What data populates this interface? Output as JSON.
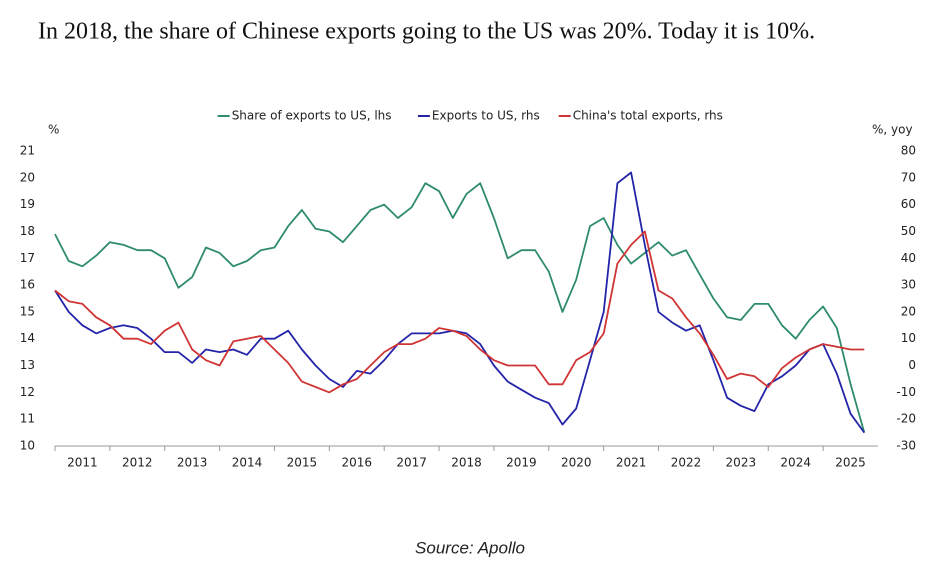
{
  "chart_data": {
    "type": "line",
    "title": "In 2018, the share of Chinese exports going to the US was 20%. Today it is 10%.",
    "source": "Source: Apollo",
    "ylabel": "%",
    "y2label": "%, yoy",
    "x": [
      2011,
      2011.25,
      2011.5,
      2011.75,
      2012,
      2012.25,
      2012.5,
      2012.75,
      2013,
      2013.25,
      2013.5,
      2013.75,
      2014,
      2014.25,
      2014.5,
      2014.75,
      2015,
      2015.25,
      2015.5,
      2015.75,
      2016,
      2016.25,
      2016.5,
      2016.75,
      2017,
      2017.25,
      2017.5,
      2017.75,
      2018,
      2018.25,
      2018.5,
      2018.75,
      2019,
      2019.25,
      2019.5,
      2019.75,
      2020,
      2020.25,
      2020.5,
      2020.75,
      2021,
      2021.25,
      2021.5,
      2021.75,
      2022,
      2022.25,
      2022.5,
      2022.75,
      2023,
      2023.25,
      2023.5,
      2023.75,
      2024,
      2024.25,
      2024.5,
      2024.75,
      2025,
      2025.25,
      2025.5,
      2025.75
    ],
    "series": [
      {
        "name": "Share of exports to US, lhs",
        "color": "#2e8b6e",
        "axis": "y",
        "values": [
          17.9,
          16.9,
          16.7,
          17.1,
          17.6,
          17.5,
          17.3,
          17.3,
          17.0,
          15.9,
          16.3,
          17.4,
          17.2,
          16.7,
          16.9,
          17.3,
          17.4,
          18.2,
          18.8,
          18.1,
          18.0,
          17.6,
          18.2,
          18.8,
          19.0,
          18.5,
          18.9,
          19.8,
          19.5,
          18.5,
          19.4,
          19.8,
          18.5,
          17.0,
          17.3,
          17.3,
          16.5,
          15.0,
          16.2,
          18.2,
          18.5,
          17.5,
          16.8,
          17.2,
          17.6,
          17.1,
          17.3,
          16.4,
          15.5,
          14.8,
          14.7,
          15.3,
          15.3,
          14.5,
          14.0,
          14.7,
          15.2,
          14.4,
          12.3,
          10.5
        ]
      },
      {
        "name": "Exports to US, rhs",
        "color": "#2424a8",
        "axis": "y2",
        "values": [
          28,
          20,
          15,
          12,
          14,
          15,
          14,
          10,
          5,
          5,
          1,
          6,
          5,
          6,
          4,
          10,
          10,
          13,
          6,
          0,
          -5,
          -8,
          -2,
          -3,
          2,
          8,
          12,
          12,
          12,
          13,
          12,
          8,
          0,
          -6,
          -9,
          -12,
          -14,
          -22,
          -16,
          2,
          20,
          68,
          72,
          45,
          20,
          16,
          13,
          15,
          2,
          -12,
          -15,
          -17,
          -7,
          -4,
          0,
          6,
          8,
          -3,
          -18,
          -25
        ]
      },
      {
        "name": "China's total exports, rhs",
        "color": "#d03434",
        "axis": "y2",
        "values": [
          28,
          24,
          23,
          18,
          15,
          10,
          10,
          8,
          13,
          16,
          6,
          2,
          0,
          9,
          10,
          11,
          6,
          1,
          -6,
          -8,
          -10,
          -7,
          -5,
          0,
          5,
          8,
          8,
          10,
          14,
          13,
          11,
          6,
          2,
          0,
          0,
          0,
          -7,
          -7,
          2,
          5,
          12,
          38,
          45,
          50,
          28,
          25,
          18,
          12,
          4,
          -5,
          -3,
          -4,
          -8,
          -1,
          3,
          6,
          8,
          7,
          6,
          6
        ]
      }
    ],
    "xlim": [
      2011,
      2026
    ],
    "xticks": [
      2011,
      2012,
      2013,
      2014,
      2015,
      2016,
      2017,
      2018,
      2019,
      2020,
      2021,
      2022,
      2023,
      2024,
      2025
    ],
    "ylim": [
      10,
      21
    ],
    "yticks": [
      10,
      11,
      12,
      13,
      14,
      15,
      16,
      17,
      18,
      19,
      20,
      21
    ],
    "y2lim": [
      -30,
      80
    ],
    "y2ticks": [
      -30,
      -20,
      -10,
      0,
      10,
      20,
      30,
      40,
      50,
      60,
      70,
      80
    ],
    "legend": "top"
  }
}
